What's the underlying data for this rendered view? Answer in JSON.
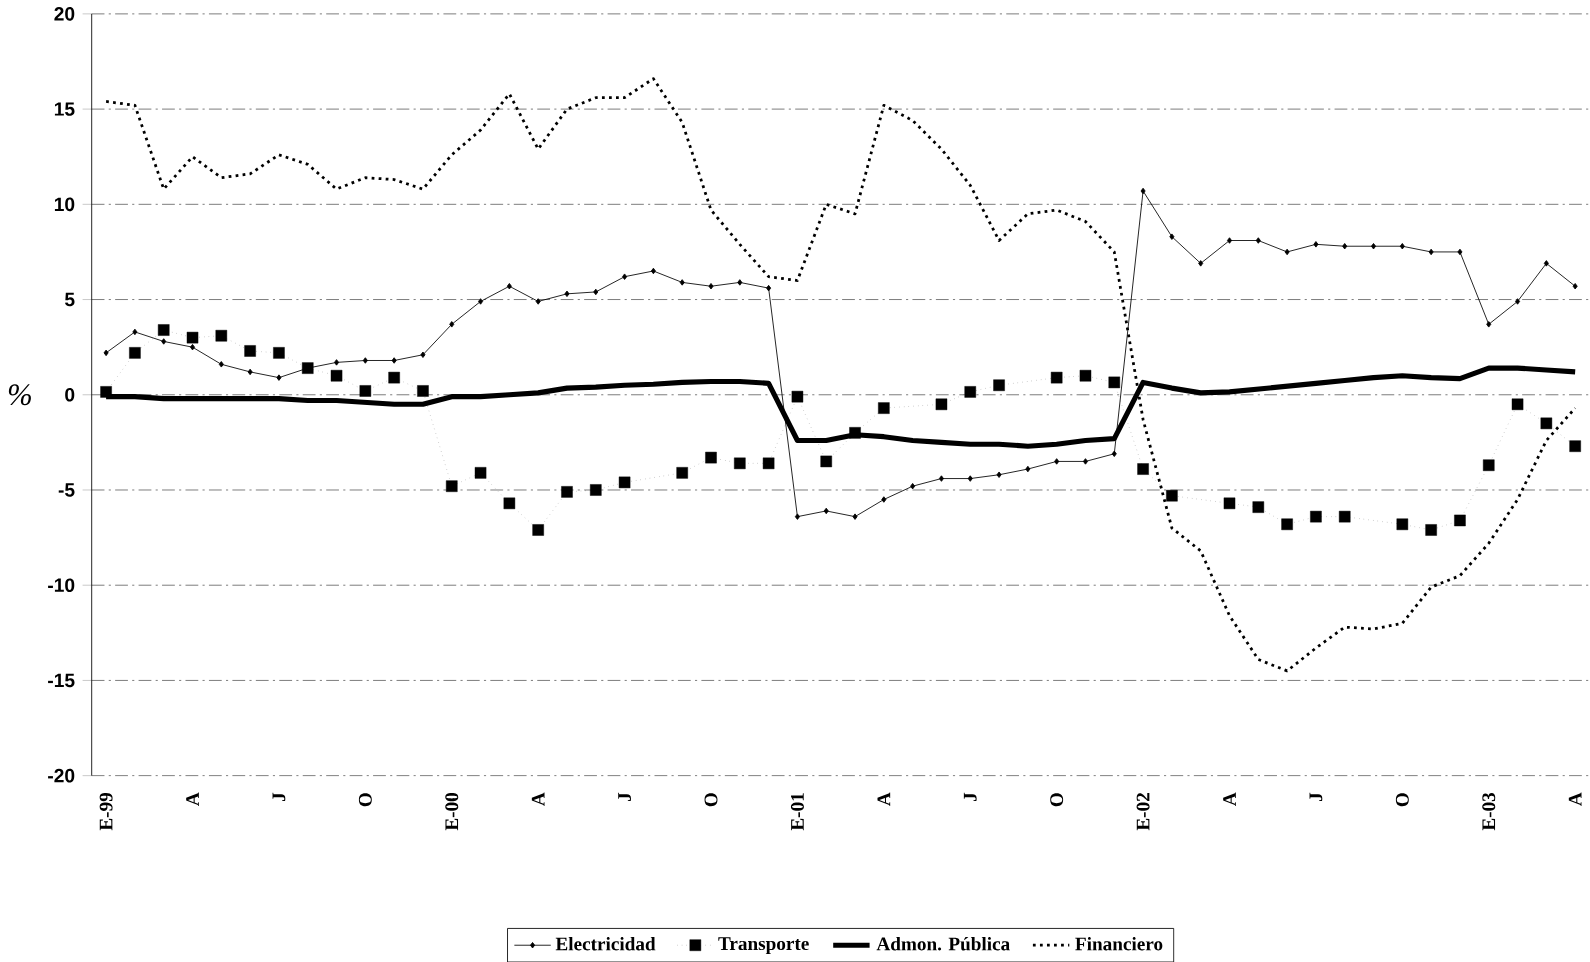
{
  "chart_data": {
    "type": "line",
    "ylabel": "%",
    "categories": [
      "E-99",
      null,
      null,
      "A",
      null,
      null,
      "J",
      null,
      null,
      "O",
      null,
      null,
      "E-00",
      null,
      null,
      "A",
      null,
      null,
      "J",
      null,
      null,
      "O",
      null,
      null,
      "E-01",
      null,
      null,
      "A",
      null,
      null,
      "J",
      null,
      null,
      "O",
      null,
      null,
      "E-02",
      null,
      null,
      "A",
      null,
      null,
      "J",
      null,
      null,
      "O",
      null,
      null,
      "E-03",
      null,
      null,
      "A"
    ],
    "series": [
      {
        "name": "Electricidad",
        "color": "#000000",
        "marker": "diamond",
        "line_style": "solid",
        "values": [
          2.2,
          3.3,
          2.8,
          2.5,
          1.6,
          1.2,
          0.9,
          1.4,
          1.7,
          1.8,
          1.8,
          2.1,
          3.7,
          4.9,
          5.7,
          4.9,
          5.3,
          5.4,
          6.2,
          6.5,
          5.9,
          5.7,
          5.9,
          5.6,
          -6.4,
          -6.1,
          -6.4,
          -5.5,
          -4.8,
          -4.4,
          -4.4,
          -4.2,
          -3.9,
          -3.5,
          -3.5,
          -3.1,
          10.7,
          8.3,
          6.9,
          8.1,
          8.1,
          7.5,
          7.9,
          7.8,
          7.8,
          7.8,
          7.5,
          7.5,
          3.7,
          4.9,
          6.9,
          5.7
        ]
      },
      {
        "name": "Transporte",
        "color": "#000000",
        "marker": "square",
        "line_style": "dotted",
        "values": [
          0.15,
          2.2,
          3.4,
          3.0,
          3.1,
          2.3,
          2.2,
          1.4,
          1.0,
          0.2,
          0.9,
          0.2,
          -4.8,
          -4.1,
          -5.7,
          -7.1,
          -5.1,
          -5.0,
          -4.6,
          null,
          -4.1,
          -3.3,
          -3.6,
          -3.6,
          -0.1,
          -3.5,
          -2.0,
          -0.7,
          null,
          -0.5,
          0.15,
          0.5,
          null,
          0.9,
          1.0,
          0.65,
          -3.9,
          -5.3,
          null,
          -5.7,
          -5.9,
          -6.8,
          -6.4,
          -6.4,
          null,
          -6.8,
          -7.1,
          -6.6,
          -3.7,
          -0.5,
          -1.5,
          -2.7
        ]
      },
      {
        "name": "Admon. Pública",
        "color": "#000000",
        "marker": "none",
        "line_style": "solid",
        "values": [
          -0.1,
          -0.1,
          -0.2,
          -0.2,
          -0.2,
          -0.2,
          -0.2,
          -0.3,
          -0.3,
          -0.4,
          -0.5,
          -0.5,
          -0.1,
          -0.1,
          0.0,
          0.1,
          0.35,
          0.4,
          0.5,
          0.55,
          0.65,
          0.7,
          0.7,
          0.6,
          -2.4,
          -2.4,
          -2.1,
          -2.2,
          -2.4,
          -2.5,
          -2.6,
          -2.6,
          -2.7,
          -2.6,
          -2.4,
          -2.3,
          0.65,
          0.35,
          0.1,
          0.15,
          0.3,
          0.45,
          0.6,
          0.75,
          0.9,
          1.0,
          0.9,
          0.85,
          1.4,
          1.4,
          1.3,
          1.2
        ]
      },
      {
        "name": "Financiero",
        "color": "#000000",
        "marker": "none",
        "line_style": "dotted",
        "values": [
          15.4,
          15.2,
          10.8,
          12.5,
          11.4,
          11.6,
          12.6,
          12.1,
          10.8,
          11.4,
          11.3,
          10.8,
          12.6,
          13.9,
          15.8,
          12.9,
          15.0,
          15.6,
          15.6,
          16.6,
          14.3,
          9.7,
          7.9,
          6.2,
          6.0,
          10.0,
          9.5,
          15.2,
          14.4,
          12.9,
          11.0,
          8.1,
          9.5,
          9.7,
          9.1,
          7.5,
          -1.3,
          -7.0,
          -8.2,
          -11.6,
          -13.9,
          -14.5,
          -13.3,
          -12.2,
          -12.3,
          -12.0,
          -10.1,
          -9.5,
          -7.8,
          -5.5,
          -2.4,
          -0.7
        ]
      }
    ],
    "ylim": [
      -20,
      20
    ],
    "yticks": [
      -20,
      -15,
      -10,
      -5,
      0,
      5,
      10,
      15,
      20
    ],
    "grid": "y",
    "legend": "bottom"
  }
}
